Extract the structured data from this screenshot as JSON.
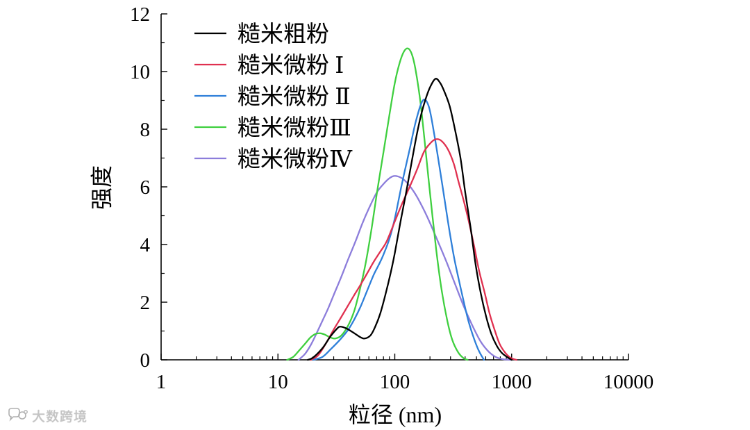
{
  "chart_data": {
    "type": "line",
    "title": "",
    "xlabel": "粒径 (nm)",
    "ylabel": "强度",
    "xscale": "log",
    "xlim": [
      1,
      10000
    ],
    "ylim": [
      0,
      12
    ],
    "xticks": [
      1,
      10,
      100,
      1000,
      10000
    ],
    "xtick_labels": [
      "1",
      "10",
      "100",
      "1000",
      "10000"
    ],
    "yticks": [
      0,
      2,
      4,
      6,
      8,
      10,
      12
    ],
    "ytick_labels": [
      "0",
      "2",
      "4",
      "6",
      "8",
      "10",
      "12"
    ],
    "grid": false,
    "legend_position": "top-left",
    "series": [
      {
        "name": "糙米粗粉",
        "color": "#000000",
        "x": [
          18,
          20,
          24,
          28,
          32,
          34,
          38,
          44,
          50,
          55,
          62,
          68,
          75,
          83,
          92,
          100,
          112,
          125,
          140,
          154,
          168,
          182,
          200,
          223,
          245,
          266,
          295,
          327,
          365,
          401,
          445,
          492,
          545,
          605,
          670,
          743,
          820,
          912,
          1000
        ],
        "y": [
          0,
          0.08,
          0.4,
          0.8,
          1.08,
          1.15,
          1.1,
          0.95,
          0.8,
          0.74,
          0.85,
          1.15,
          1.6,
          2.25,
          3.0,
          3.7,
          4.8,
          5.8,
          6.9,
          7.8,
          8.5,
          9.0,
          9.45,
          9.75,
          9.6,
          9.3,
          8.8,
          8.0,
          7.0,
          5.8,
          4.6,
          3.3,
          2.3,
          1.5,
          0.9,
          0.5,
          0.25,
          0.1,
          0
        ]
      },
      {
        "name": "糙米微粉 Ⅰ",
        "color": "#e0304f",
        "x": [
          19,
          22,
          26,
          30,
          35,
          40,
          45,
          50,
          58,
          66,
          75,
          85,
          100,
          115,
          134,
          155,
          177,
          200,
          223,
          250,
          285,
          320,
          350,
          390,
          430,
          480,
          526,
          590,
          648,
          720,
          790,
          880,
          980,
          1100
        ],
        "y": [
          0,
          0.15,
          0.6,
          1.05,
          1.5,
          1.9,
          2.25,
          2.55,
          3.0,
          3.4,
          3.75,
          4.1,
          4.8,
          5.4,
          6.0,
          6.6,
          7.2,
          7.5,
          7.65,
          7.6,
          7.3,
          6.8,
          6.2,
          5.5,
          4.8,
          3.9,
          3.1,
          2.3,
          1.6,
          1.0,
          0.55,
          0.25,
          0.07,
          0
        ]
      },
      {
        "name": "糙米微粉 Ⅱ",
        "color": "#2e7fd9",
        "x": [
          20,
          24,
          28,
          34,
          40,
          45,
          51,
          58,
          66,
          73,
          80,
          90,
          100,
          115,
          134,
          152,
          174,
          195,
          216,
          250,
          285,
          320,
          350,
          390,
          430,
          480,
          526,
          580
        ],
        "y": [
          0,
          0.1,
          0.35,
          0.7,
          1.05,
          1.4,
          1.85,
          2.4,
          2.95,
          3.3,
          3.65,
          4.2,
          4.9,
          6.1,
          7.3,
          8.3,
          9.0,
          8.8,
          7.9,
          6.3,
          4.8,
          3.6,
          2.85,
          2.0,
          1.3,
          0.7,
          0.3,
          0
        ]
      },
      {
        "name": "糙米微粉Ⅲ",
        "color": "#3fcf3f",
        "x": [
          12,
          13.5,
          15,
          17,
          19,
          21,
          23,
          25,
          28,
          31,
          35,
          40,
          45,
          50,
          56,
          63,
          71,
          80,
          90,
          100,
          110,
          120,
          130,
          140,
          150,
          165,
          180,
          200,
          225,
          250,
          280,
          310,
          350,
          390,
          420
        ],
        "y": [
          0,
          0.1,
          0.3,
          0.55,
          0.78,
          0.9,
          0.92,
          0.88,
          0.78,
          0.74,
          0.85,
          1.2,
          1.7,
          2.4,
          3.3,
          4.5,
          5.9,
          7.2,
          8.5,
          9.6,
          10.3,
          10.7,
          10.8,
          10.6,
          10.1,
          9.0,
          7.6,
          5.8,
          3.9,
          2.5,
          1.4,
          0.7,
          0.25,
          0.05,
          0
        ]
      },
      {
        "name": "糙米微粉Ⅳ",
        "color": "#8c7ddb",
        "x": [
          15,
          17,
          19,
          21,
          24,
          27,
          30,
          35,
          40,
          46,
          53,
          60,
          70,
          80,
          90,
          100,
          115,
          130,
          150,
          175,
          200,
          240,
          280,
          330,
          390,
          460,
          540,
          630,
          730,
          850,
          1000
        ],
        "y": [
          0,
          0.2,
          0.5,
          0.85,
          1.35,
          1.8,
          2.25,
          2.9,
          3.5,
          4.1,
          4.75,
          5.25,
          5.8,
          6.1,
          6.3,
          6.38,
          6.3,
          6.1,
          5.75,
          5.25,
          4.75,
          4.0,
          3.35,
          2.6,
          1.85,
          1.2,
          0.65,
          0.3,
          0.1,
          0.02,
          0
        ]
      }
    ]
  },
  "watermark": {
    "text": "大数跨境",
    "icon": "chat-bubbles-logo-icon"
  }
}
